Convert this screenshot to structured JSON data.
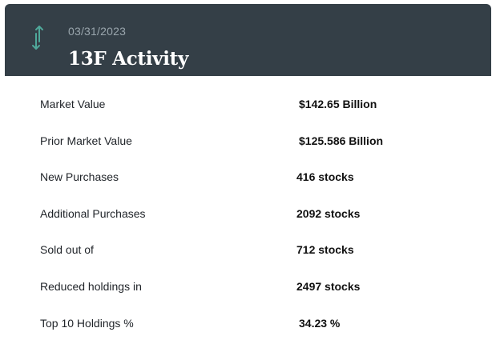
{
  "header": {
    "date": "03/31/2023",
    "title": "13F Activity",
    "icon": "swap-vertical-arrows-icon",
    "icon_color": "#4fa89a",
    "background": "#343f47"
  },
  "rows": [
    {
      "label": "Market Value",
      "value": "$142.65 Billion"
    },
    {
      "label": "Prior Market Value",
      "value": "$125.586 Billion"
    },
    {
      "label": "New Purchases",
      "value": "416 stocks"
    },
    {
      "label": "Additional Purchases",
      "value": "2092 stocks"
    },
    {
      "label": "Sold out of",
      "value": "712 stocks"
    },
    {
      "label": "Reduced holdings in",
      "value": "2497 stocks"
    },
    {
      "label": "Top 10 Holdings %",
      "value": "34.23 %"
    }
  ]
}
